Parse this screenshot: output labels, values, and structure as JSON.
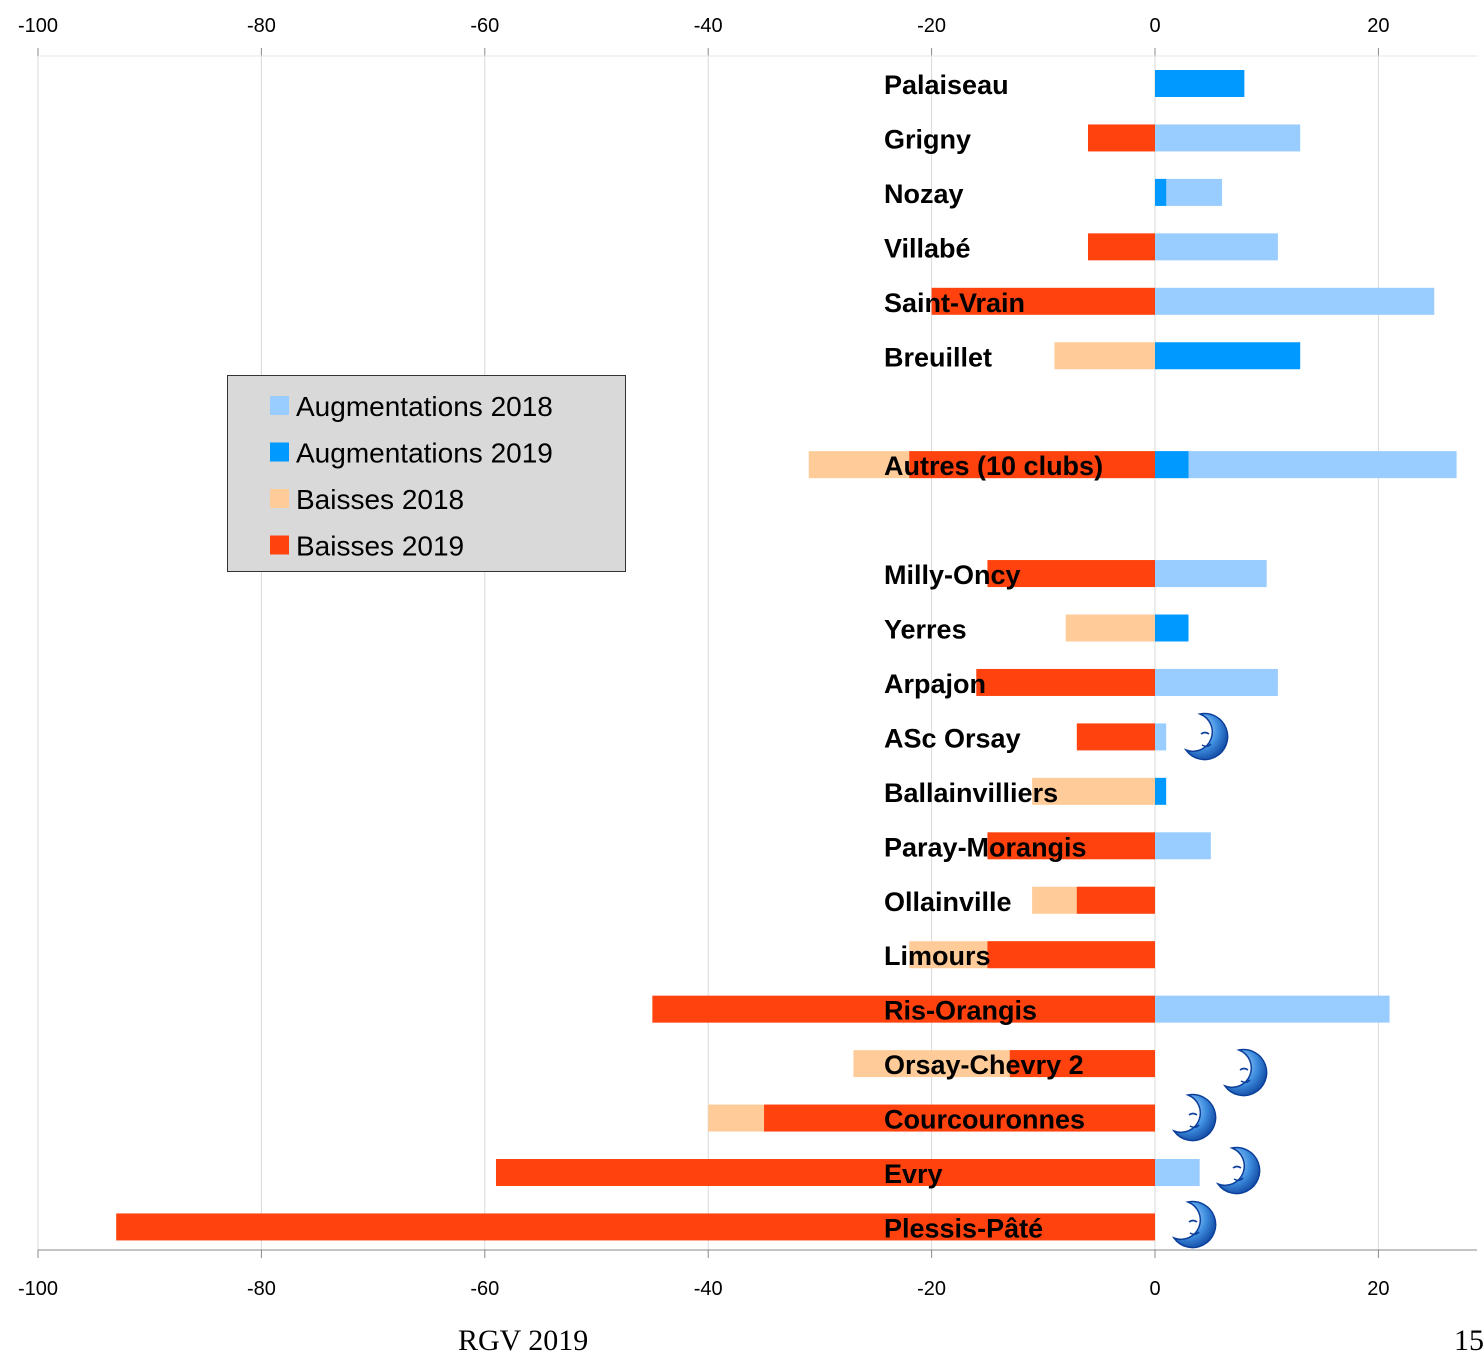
{
  "chart_data": {
    "type": "bar",
    "orientation": "horizontal",
    "stacked": "overlaid",
    "categories": [
      "Palaiseau",
      "Grigny",
      "Nozay",
      "Villabé",
      "Saint-Vrain",
      "Breuillet",
      "",
      "Autres (10 clubs)",
      "",
      "Milly-Oncy",
      "Yerres",
      "Arpajon",
      "ASc Orsay",
      "Ballainvilliers",
      "Paray-Morangis",
      "Ollainville",
      "Limours",
      "Ris-Orangis",
      "Orsay-Chevry 2",
      "Courcouronnes",
      "Evry",
      "Plessis-Pâté"
    ],
    "series": [
      {
        "name": "Augmentations 2018",
        "color": "#99ccff",
        "values": [
          0,
          13,
          6,
          11,
          25,
          0,
          null,
          27,
          null,
          10,
          0,
          11,
          1,
          0,
          5,
          0,
          0,
          21,
          0,
          0,
          4,
          0
        ]
      },
      {
        "name": "Augmentations 2019",
        "color": "#0099ff",
        "values": [
          8,
          0,
          1,
          0,
          0,
          13,
          null,
          3,
          null,
          0,
          3,
          0,
          0,
          1,
          0,
          0,
          0,
          0,
          0,
          0,
          0,
          0
        ]
      },
      {
        "name": "Baisses 2018",
        "color": "#ffcc99",
        "values": [
          0,
          0,
          0,
          0,
          0,
          -9,
          null,
          -31,
          null,
          0,
          -8,
          0,
          0,
          -11,
          0,
          -11,
          -22,
          0,
          -27,
          -40,
          0,
          0
        ]
      },
      {
        "name": "Baisses 2019",
        "color": "#ff420e",
        "values": [
          0,
          -6,
          0,
          -6,
          -20,
          0,
          null,
          -22,
          null,
          -15,
          0,
          -16,
          -7,
          0,
          -15,
          -7,
          -15,
          -45,
          -13,
          -35,
          -59,
          -93
        ]
      }
    ],
    "xlim": [
      -100,
      27
    ],
    "xticks": [
      -100,
      -80,
      -60,
      -40,
      -20,
      0,
      20
    ],
    "xtick_labels": [
      "-100",
      "-80",
      "-60",
      "-40",
      "-20",
      "0",
      "20"
    ],
    "grid": true,
    "legend_position": "left",
    "moon_icons_on": [
      "ASc Orsay",
      "Orsay-Chevry 2",
      "Courcouronnes",
      "Evry",
      "Plessis-Pâté"
    ]
  },
  "footer": {
    "left_text": "RGV 2019",
    "right_text": "15"
  }
}
